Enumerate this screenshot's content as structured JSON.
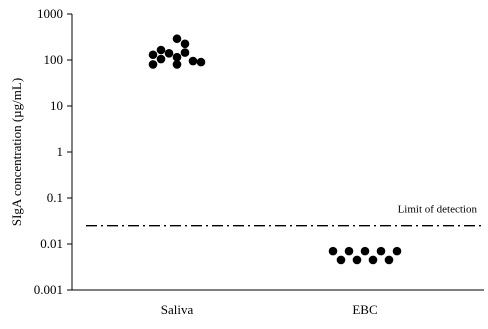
{
  "chart_data": {
    "type": "scatter",
    "title": "",
    "xlabel": "",
    "ylabel": "SIgA concentration (µg/mL)",
    "y_scale": "log",
    "ylim": [
      0.001,
      1000
    ],
    "y_ticks": [
      {
        "value": 0.001,
        "label": "0.001"
      },
      {
        "value": 0.01,
        "label": "0.01"
      },
      {
        "value": 0.1,
        "label": "0.1"
      },
      {
        "value": 1,
        "label": "1"
      },
      {
        "value": 10,
        "label": "10"
      },
      {
        "value": 100,
        "label": "100"
      },
      {
        "value": 1000,
        "label": "1000"
      }
    ],
    "categories": [
      "Saliva",
      "EBC"
    ],
    "grid": false,
    "marker_color": "#000000",
    "series": [
      {
        "category": "Saliva",
        "points": [
          {
            "offset": -3,
            "y": 80
          },
          {
            "offset": -3,
            "y": 130
          },
          {
            "offset": -2,
            "y": 105
          },
          {
            "offset": -2,
            "y": 165
          },
          {
            "offset": -1,
            "y": 140
          },
          {
            "offset": 0,
            "y": 80
          },
          {
            "offset": 0,
            "y": 115
          },
          {
            "offset": 0,
            "y": 290
          },
          {
            "offset": 1,
            "y": 145
          },
          {
            "offset": 1,
            "y": 225
          },
          {
            "offset": 2,
            "y": 95
          },
          {
            "offset": 3,
            "y": 90
          }
        ]
      },
      {
        "category": "EBC",
        "points": [
          {
            "offset": -4,
            "y": 0.007
          },
          {
            "offset": -3,
            "y": 0.0045
          },
          {
            "offset": -2,
            "y": 0.007
          },
          {
            "offset": -1,
            "y": 0.0045
          },
          {
            "offset": 0,
            "y": 0.007
          },
          {
            "offset": 1,
            "y": 0.0045
          },
          {
            "offset": 2,
            "y": 0.007
          },
          {
            "offset": 3,
            "y": 0.0045
          },
          {
            "offset": 4,
            "y": 0.007
          }
        ]
      }
    ],
    "reference_lines": [
      {
        "y": 0.025,
        "label": "Limit of detection",
        "style": "dash-dot"
      }
    ]
  }
}
